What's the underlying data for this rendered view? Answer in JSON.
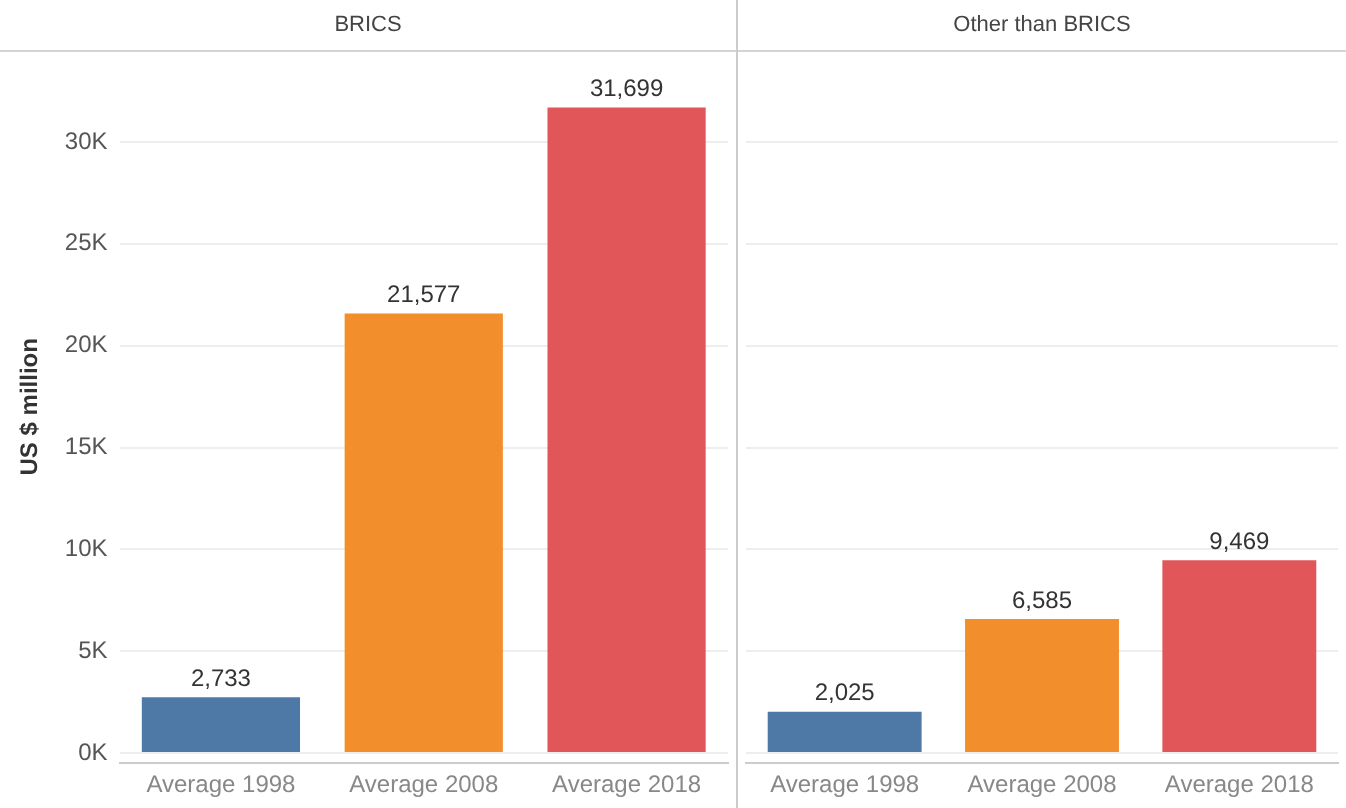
{
  "chart_data": [
    {
      "type": "bar",
      "title": "BRICS",
      "ylabel": "US $ million",
      "categories": [
        "Average 1998",
        "Average 2008",
        "Average 2018"
      ],
      "values": [
        2733,
        21577,
        31699
      ],
      "colors": [
        "#4e79a7",
        "#f28e2b",
        "#e15759"
      ],
      "value_labels": [
        "2,733",
        "21,577",
        "31,699"
      ],
      "ylim": [
        -500,
        34500
      ],
      "yticks": [
        {
          "value": 0,
          "label": "0K"
        },
        {
          "value": 5000,
          "label": "5K"
        },
        {
          "value": 10000,
          "label": "10K"
        },
        {
          "value": 15000,
          "label": "15K"
        },
        {
          "value": 20000,
          "label": "20K"
        },
        {
          "value": 25000,
          "label": "25K"
        },
        {
          "value": 30000,
          "label": "30K"
        }
      ],
      "grid": "y",
      "legend": false
    },
    {
      "type": "bar",
      "title": "Other than BRICS",
      "categories": [
        "Average 1998",
        "Average 2008",
        "Average 2018"
      ],
      "values": [
        2025,
        6585,
        9469
      ],
      "colors": [
        "#4e79a7",
        "#f28e2b",
        "#e15759"
      ],
      "value_labels": [
        "2,025",
        "6,585",
        "9,469"
      ],
      "ylim": [
        -500,
        34500
      ],
      "yticks": [
        {
          "value": 0,
          "label": null
        },
        {
          "value": 5000,
          "label": null
        },
        {
          "value": 10000,
          "label": null
        },
        {
          "value": 15000,
          "label": null
        },
        {
          "value": 20000,
          "label": null
        },
        {
          "value": 25000,
          "label": null
        },
        {
          "value": 30000,
          "label": null
        }
      ],
      "grid": "y",
      "legend": false,
      "tick_labels": "x"
    }
  ]
}
